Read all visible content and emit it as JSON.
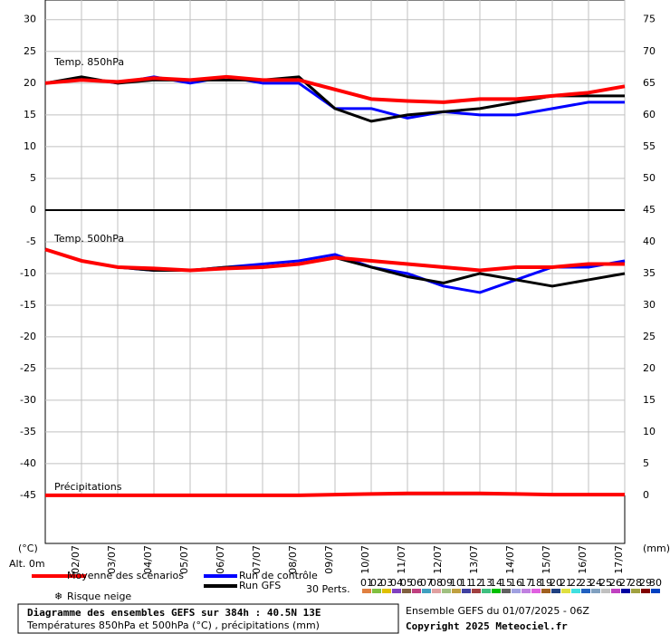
{
  "chart_data": [
    {
      "type": "line",
      "title": "Temp. 850hPa",
      "x": [
        0,
        24,
        48,
        72,
        96,
        120,
        144,
        168,
        192,
        216,
        240,
        264,
        288,
        312,
        336,
        360,
        384
      ],
      "xlim": [
        0,
        384
      ],
      "xticks": [
        24,
        48,
        72,
        96,
        120,
        144,
        168,
        192,
        216,
        240,
        264,
        288,
        312,
        336,
        360,
        384
      ],
      "ylim": [
        0,
        33.1
      ],
      "yticks": [
        0,
        5,
        10,
        15,
        20,
        25,
        30
      ],
      "y2lim": [
        45,
        78.1
      ],
      "y2ticks": [
        45,
        50,
        55,
        60,
        65,
        70,
        75
      ],
      "grid": true,
      "series": [
        {
          "name": "Run de contrôle",
          "color": "#0000ff",
          "width": 3,
          "values": [
            20,
            20.8,
            20,
            21,
            20,
            21,
            20,
            20,
            16,
            16,
            14.5,
            15.5,
            15,
            15,
            16,
            17,
            17
          ]
        },
        {
          "name": "Run GFS",
          "color": "#000000",
          "width": 3,
          "values": [
            20,
            21,
            20,
            20.5,
            20.5,
            20.5,
            20.5,
            21,
            16,
            14,
            15,
            15.5,
            16,
            17,
            18,
            18,
            18
          ]
        },
        {
          "name": "Moyenne des scénarios",
          "color": "#ff0000",
          "width": 4,
          "values": [
            20,
            20.5,
            20.2,
            20.8,
            20.5,
            21,
            20.5,
            20.5,
            19,
            17.5,
            17.2,
            17,
            17.5,
            17.5,
            18,
            18.5,
            19.5
          ]
        }
      ]
    },
    {
      "type": "line",
      "title": "Temp. 500hPa",
      "x": [
        0,
        24,
        48,
        72,
        96,
        120,
        144,
        168,
        192,
        216,
        240,
        264,
        288,
        312,
        336,
        360,
        384
      ],
      "xlim": [
        0,
        384
      ],
      "xticks": [
        {
          "value": 24,
          "label": "02/07"
        },
        {
          "value": 48,
          "label": "03/07"
        },
        {
          "value": 72,
          "label": "04/07"
        },
        {
          "value": 96,
          "label": "05/07"
        },
        {
          "value": 120,
          "label": "06/07"
        },
        {
          "value": 144,
          "label": "07/07"
        },
        {
          "value": 168,
          "label": "08/07"
        },
        {
          "value": 192,
          "label": "09/07"
        },
        {
          "value": 216,
          "label": "10/07"
        },
        {
          "value": 240,
          "label": "11/07"
        },
        {
          "value": 264,
          "label": "12/07"
        },
        {
          "value": 288,
          "label": "13/07"
        },
        {
          "value": 312,
          "label": "14/07"
        },
        {
          "value": 336,
          "label": "15/07"
        },
        {
          "value": 360,
          "label": "16/07"
        },
        {
          "value": 384,
          "label": "17/07"
        }
      ],
      "ylim": [
        -52.6,
        0
      ],
      "yticks": [
        -5,
        -10,
        -15,
        -20,
        -25,
        -30,
        -35,
        -40,
        -45
      ],
      "y2lim": [
        -7.6,
        45
      ],
      "y2ticks": [
        0,
        5,
        10,
        15,
        20,
        25,
        30,
        35,
        40
      ],
      "grid": true,
      "series": [
        {
          "color": "#0000ff",
          "width": 3,
          "values": [
            -6.2,
            -8,
            -9,
            -9.5,
            -9.5,
            -9,
            -8.5,
            -8,
            -7,
            -9,
            -10,
            -12,
            -13,
            -11,
            -9,
            -9,
            -8
          ]
        },
        {
          "color": "#000000",
          "width": 3,
          "values": [
            -6.2,
            -8,
            -9,
            -9.5,
            -9.5,
            -9,
            -9,
            -8.5,
            -7.5,
            -9,
            -10.5,
            -11.5,
            -10,
            -11,
            -12,
            -11,
            -10
          ]
        },
        {
          "color": "#ff0000",
          "width": 4,
          "values": [
            -6.2,
            -8,
            -9,
            -9.2,
            -9.5,
            -9.2,
            -9,
            -8.5,
            -7.5,
            -8,
            -8.5,
            -9,
            -9.5,
            -9,
            -9,
            -8.5,
            -8.5
          ]
        },
        {
          "name": "Précipitations",
          "axis": "y2",
          "color": "#ff0000",
          "width": 4,
          "values": [
            0,
            0,
            0,
            0,
            0,
            0,
            0,
            0,
            0.1,
            0.2,
            0.3,
            0.3,
            0.3,
            0.2,
            0.1,
            0.1,
            0.1
          ]
        }
      ]
    }
  ],
  "axis_units": {
    "left": "(°C)",
    "right": "(mm)",
    "altitude": "Alt. 0m"
  },
  "legend_extra": {
    "snow": "Risque neige",
    "perturbations_label": "30 Perts.",
    "perturbations": [
      {
        "name": "01",
        "color": "#e08040"
      },
      {
        "name": "02",
        "color": "#80c040"
      },
      {
        "name": "03",
        "color": "#e0c000"
      },
      {
        "name": "04",
        "color": "#8040c0"
      },
      {
        "name": "05",
        "color": "#806040"
      },
      {
        "name": "06",
        "color": "#c04080"
      },
      {
        "name": "07",
        "color": "#40a0c0"
      },
      {
        "name": "08",
        "color": "#e0a0a0"
      },
      {
        "name": "09",
        "color": "#a0c080"
      },
      {
        "name": "10",
        "color": "#c0a040"
      },
      {
        "name": "11",
        "color": "#4040a0"
      },
      {
        "name": "12",
        "color": "#a04040"
      },
      {
        "name": "13",
        "color": "#40c080"
      },
      {
        "name": "14",
        "color": "#00c000"
      },
      {
        "name": "15",
        "color": "#606060"
      },
      {
        "name": "16",
        "color": "#a0a0e0"
      },
      {
        "name": "17",
        "color": "#c080e0"
      },
      {
        "name": "18",
        "color": "#e060e0"
      },
      {
        "name": "19",
        "color": "#a06020"
      },
      {
        "name": "20",
        "color": "#204080"
      },
      {
        "name": "21",
        "color": "#e0e040"
      },
      {
        "name": "22",
        "color": "#40e0e0"
      },
      {
        "name": "23",
        "color": "#2060c0"
      },
      {
        "name": "24",
        "color": "#80a0c0"
      },
      {
        "name": "25",
        "color": "#c0c0c0"
      },
      {
        "name": "26",
        "color": "#c040c0"
      },
      {
        "name": "27",
        "color": "#0000a0"
      },
      {
        "name": "28",
        "color": "#a0a040"
      },
      {
        "name": "29",
        "color": "#800000"
      },
      {
        "name": "30",
        "color": "#0040c0"
      }
    ]
  },
  "footer": {
    "title": "Diagramme des ensembles GEFS sur 384h : 40.5N 13E",
    "subtitle": "Températures 850hPa et 500hPa (°C) , précipitations (mm)",
    "run": "Ensemble GEFS du 01/07/2025 - 06Z",
    "copyright": "Copyright 2025 Meteociel.fr"
  }
}
